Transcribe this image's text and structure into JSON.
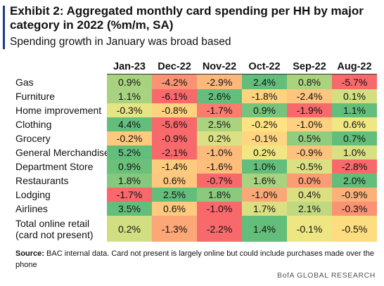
{
  "header": {
    "title": "Exhibit 2: Aggregated monthly card spending per HH by major category in 2022 (%m/m, SA)",
    "subtitle": "Spending growth in January was broad based"
  },
  "footer": {
    "source_label": "Source:",
    "source_text": " BAC internal data. Card not present is largely online but could include purchases made over the phone",
    "brand": "BofA GLOBAL RESEARCH"
  },
  "chart_data": {
    "type": "table",
    "title": "Exhibit 2: Aggregated monthly card spending per HH by major category in 2022 (%m/m, SA)",
    "subtitle": "Spending growth in January was broad based",
    "columns": [
      "Jan-23",
      "Dec-22",
      "Nov-22",
      "Oct-22",
      "Sep-22",
      "Aug-22"
    ],
    "rows": [
      {
        "label": "Gas",
        "values": [
          0.9,
          -4.2,
          -2.9,
          2.4,
          0.8,
          -5.7
        ]
      },
      {
        "label": "Furniture",
        "values": [
          1.1,
          -6.1,
          2.6,
          -1.8,
          -2.4,
          0.1
        ]
      },
      {
        "label": "Home improvement",
        "values": [
          -0.3,
          -0.8,
          -1.7,
          0.9,
          -1.9,
          1.1
        ]
      },
      {
        "label": "Clothing",
        "values": [
          4.4,
          -5.6,
          2.5,
          -0.2,
          -1.0,
          0.6
        ]
      },
      {
        "label": "Grocery",
        "values": [
          -0.2,
          -0.9,
          0.2,
          -0.1,
          0.5,
          0.7
        ]
      },
      {
        "label": "General Merchandise",
        "values": [
          5.2,
          -2.1,
          -1.0,
          0.2,
          -0.9,
          1.0
        ]
      },
      {
        "label": "Department Store",
        "values": [
          0.9,
          -1.4,
          -1.6,
          1.0,
          -0.5,
          -2.8
        ]
      },
      {
        "label": "Restaurants",
        "values": [
          1.8,
          0.6,
          -0.7,
          1.6,
          0.0,
          2.0
        ]
      },
      {
        "label": "Lodging",
        "values": [
          -1.7,
          2.5,
          1.8,
          -1.0,
          0.4,
          -0.9
        ]
      },
      {
        "label": "Airlines",
        "values": [
          3.5,
          0.6,
          -1.0,
          1.7,
          2.1,
          -0.3
        ]
      },
      {
        "label": "Total online retail\n(card not present)",
        "values": [
          0.2,
          -1.3,
          -2.2,
          1.4,
          -0.1,
          -0.5
        ]
      }
    ],
    "cell_format": "{value}%",
    "color_scale": {
      "low": "#f8696b",
      "mid": "#ffeb84",
      "high": "#63be7b"
    }
  }
}
